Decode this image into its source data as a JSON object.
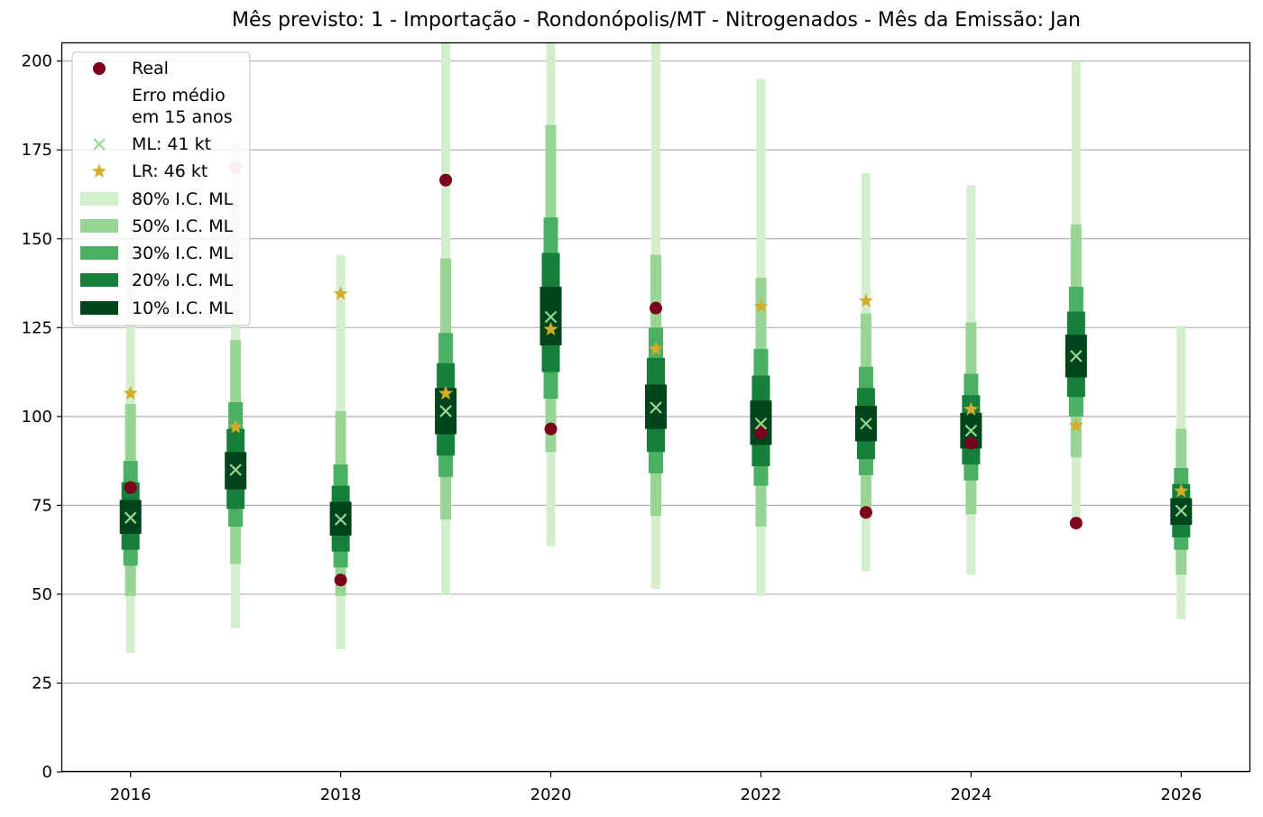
{
  "chart_data": {
    "type": "interval-forecast",
    "title": "Mês previsto: 1 - Importação - Rondonópolis/MT - Nitrogenados - Mês da Emissão: Jan",
    "xlabel": "",
    "ylabel": "",
    "x_ticks": [
      "2016",
      "2018",
      "2020",
      "2022",
      "2024",
      "2026"
    ],
    "y_ticks": [
      0,
      25,
      50,
      75,
      100,
      125,
      150,
      175,
      200
    ],
    "xlim": [
      2015.35,
      2026.65
    ],
    "ylim": [
      0,
      205
    ],
    "grid": "horizontal",
    "legend_position": "upper left",
    "colors": {
      "real": "#7b001c",
      "real_faded": "#d6b0ba",
      "ml": "#98d594",
      "lr": "#d4ac2b",
      "ci80": "#d3eecd",
      "ci50": "#98d594",
      "ci30": "#4bb062",
      "ci20": "#157f3b",
      "ci10": "#00441b"
    },
    "legend": {
      "real": "Real",
      "error_header_line1": "Erro médio",
      "error_header_line2": "em 15 anos",
      "ml": "ML: 41 kt",
      "lr": "LR: 46 kt",
      "ci80": "80% I.C. ML",
      "ci50": "50% I.C. ML",
      "ci30": "30% I.C. ML",
      "ci20": "20% I.C. ML",
      "ci10": "10% I.C. ML"
    },
    "points": [
      {
        "year": 2016,
        "ml": 71.5,
        "lr": 106.5,
        "real": 80,
        "ci80": [
          33.5,
          150
        ],
        "ci50": [
          49.5,
          103.5
        ],
        "ci30": [
          58,
          87.5
        ],
        "ci20": [
          62.5,
          81.5
        ],
        "ci10": [
          67,
          76.5
        ]
      },
      {
        "year": 2017,
        "ml": 85,
        "lr": 97,
        "real": 170,
        "real_hidden_by_legend": true,
        "ci80": [
          40.5,
          177
        ],
        "ci50": [
          58.5,
          121.5
        ],
        "ci30": [
          69,
          104
        ],
        "ci20": [
          74,
          96.5
        ],
        "ci10": [
          79.5,
          90
        ]
      },
      {
        "year": 2018,
        "ml": 71,
        "lr": 134.5,
        "real": 54,
        "ci80": [
          34.5,
          145.5
        ],
        "ci50": [
          49.5,
          101.5
        ],
        "ci30": [
          57.5,
          86.5
        ],
        "ci20": [
          62,
          80.5
        ],
        "ci10": [
          66.5,
          76
        ]
      },
      {
        "year": 2019,
        "ml": 101.5,
        "lr": 106.5,
        "real": 166.5,
        "ci80": [
          50,
          205
        ],
        "ci50": [
          71,
          144.5
        ],
        "ci30": [
          83,
          123.5
        ],
        "ci20": [
          89,
          115
        ],
        "ci10": [
          95,
          108
        ]
      },
      {
        "year": 2020,
        "ml": 128,
        "lr": 124.5,
        "real": 96.5,
        "ci80": [
          63.5,
          205
        ],
        "ci50": [
          90,
          182
        ],
        "ci30": [
          105,
          156
        ],
        "ci20": [
          112.5,
          146
        ],
        "ci10": [
          120,
          136.5
        ]
      },
      {
        "year": 2021,
        "ml": 102.5,
        "lr": 119,
        "real": 130.5,
        "ci80": [
          51.5,
          205
        ],
        "ci50": [
          72,
          145.5
        ],
        "ci30": [
          84,
          125
        ],
        "ci20": [
          90,
          116.5
        ],
        "ci10": [
          96.5,
          109
        ]
      },
      {
        "year": 2022,
        "ml": 98,
        "lr": 131,
        "real": 95.5,
        "ci80": [
          49.5,
          195
        ],
        "ci50": [
          69,
          139
        ],
        "ci30": [
          80.5,
          119
        ],
        "ci20": [
          86,
          111.5
        ],
        "ci10": [
          92,
          104.5
        ]
      },
      {
        "year": 2023,
        "ml": 98,
        "lr": 132.5,
        "real": 73,
        "ci80": [
          56.5,
          168.5
        ],
        "ci50": [
          73.5,
          129
        ],
        "ci30": [
          83.5,
          114
        ],
        "ci20": [
          88,
          108
        ],
        "ci10": [
          93,
          103
        ]
      },
      {
        "year": 2024,
        "ml": 96,
        "lr": 102,
        "real": 92.5,
        "ci80": [
          55.5,
          165
        ],
        "ci50": [
          72.5,
          126.5
        ],
        "ci30": [
          82,
          112
        ],
        "ci20": [
          86.5,
          106
        ],
        "ci10": [
          91,
          101
        ]
      },
      {
        "year": 2025,
        "ml": 117,
        "lr": 97.5,
        "real": 70,
        "ci80": [
          71,
          200
        ],
        "ci50": [
          88.5,
          154
        ],
        "ci30": [
          100,
          136.5
        ],
        "ci20": [
          105.5,
          129.5
        ],
        "ci10": [
          111,
          123
        ]
      },
      {
        "year": 2026,
        "ml": 73.5,
        "lr": 79,
        "real": null,
        "ci80": [
          43,
          125.5
        ],
        "ci50": [
          55.5,
          96.5
        ],
        "ci30": [
          62.5,
          85.5
        ],
        "ci20": [
          66,
          81
        ],
        "ci10": [
          69.5,
          77
        ]
      }
    ]
  }
}
